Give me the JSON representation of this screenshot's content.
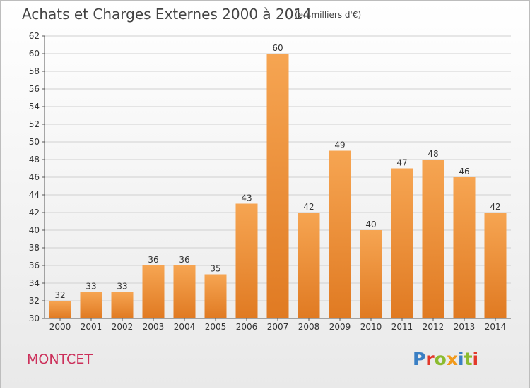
{
  "chart_data": {
    "type": "bar",
    "title": "Achats et Charges Externes 2000 à 2014",
    "subtitle": "(en milliers d'€)",
    "categories": [
      "2000",
      "2001",
      "2002",
      "2003",
      "2004",
      "2005",
      "2006",
      "2007",
      "2008",
      "2009",
      "2010",
      "2011",
      "2012",
      "2013",
      "2014"
    ],
    "values": [
      32,
      33,
      33,
      36,
      36,
      35,
      43,
      60,
      42,
      49,
      40,
      47,
      48,
      46,
      42
    ],
    "ylim": [
      30,
      62
    ],
    "yticks": [
      30,
      32,
      34,
      36,
      38,
      40,
      42,
      44,
      46,
      48,
      50,
      52,
      54,
      56,
      58,
      60,
      62
    ],
    "grid": true,
    "bar_color": "#f0903a"
  },
  "commune": "MONTCET",
  "logo": {
    "letters": [
      "P",
      "r",
      "o",
      "x",
      "i",
      "t",
      "i"
    ],
    "colors": [
      "#3a7fc4",
      "#e2382a",
      "#8bbb2f",
      "#f19a1c",
      "#3a7fc4",
      "#8bbb2f",
      "#e2382a"
    ]
  }
}
